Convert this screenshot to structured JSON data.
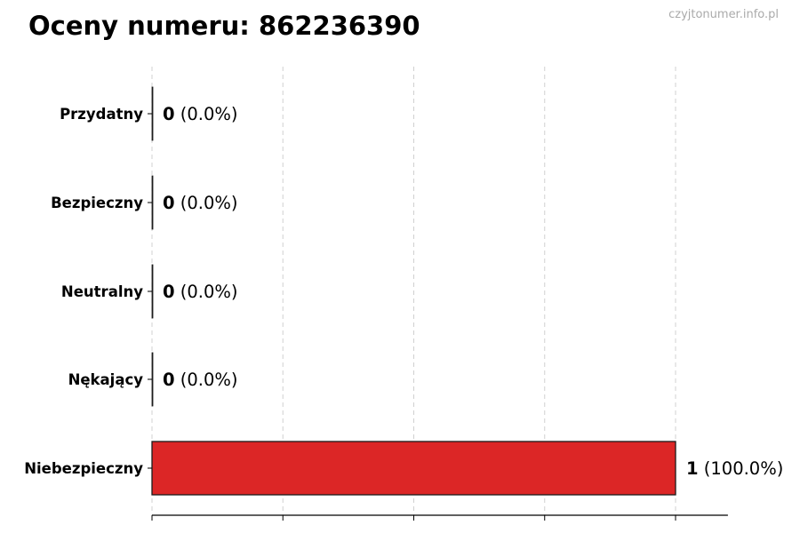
{
  "chart_data": {
    "type": "bar",
    "orientation": "horizontal",
    "title": "Oceny numeru: 862236390",
    "watermark": "czyjtonumer.info.pl",
    "categories": [
      "Przydatny",
      "Bezpieczny",
      "Neutralny",
      "Nękający",
      "Niebezpieczny"
    ],
    "values": [
      0,
      0,
      0,
      0,
      1
    ],
    "percent_labels": [
      "(0.0%)",
      "(0.0%)",
      "(0.0%)",
      "(0.0%)",
      "(100.0%)"
    ],
    "bar_colors": [
      "#2a2a2a",
      "#2a2a2a",
      "#2a2a2a",
      "#2a2a2a",
      "#dc2626"
    ],
    "xlim": [
      0,
      1.1
    ],
    "x_ticks": [
      0,
      0.25,
      0.5,
      0.75,
      1
    ],
    "x_tick_labels_shown": false,
    "grid": "vertical dashed",
    "xlabel": "",
    "ylabel": ""
  }
}
